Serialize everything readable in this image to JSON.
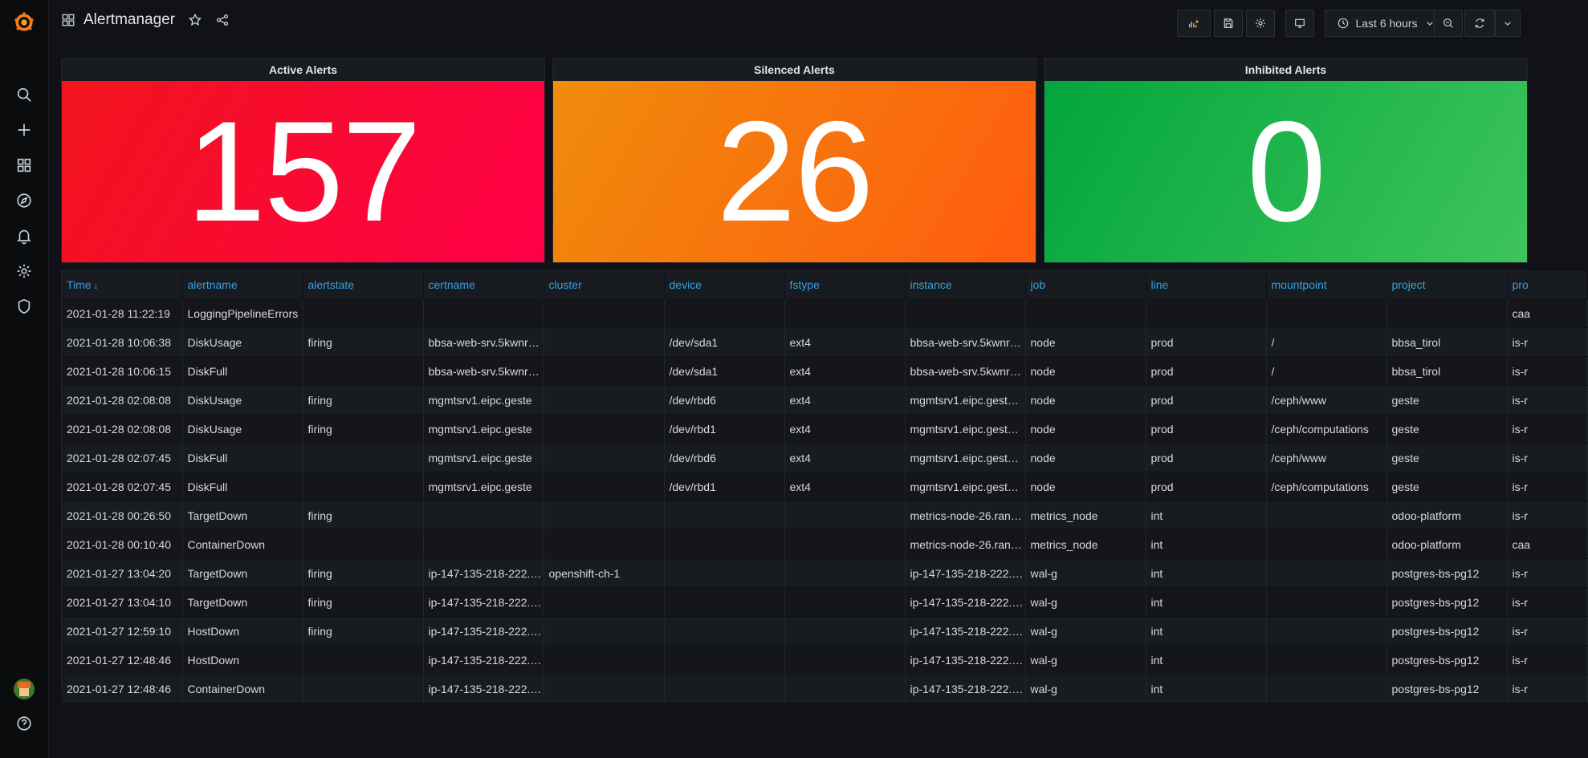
{
  "app": {
    "dashboard_title": "Alertmanager"
  },
  "sidebar": {
    "icons": [
      "grafana-logo-icon",
      "search-icon",
      "plus-icon",
      "dashboards-icon",
      "explore-icon",
      "alerting-bell-icon",
      "gear-icon",
      "shield-icon",
      "user-avatar",
      "help-icon"
    ]
  },
  "toolbar": {
    "time_range": "Last 6 hours",
    "buttons": [
      "add-panel-icon",
      "save-icon",
      "settings-icon",
      "tv-mode-icon",
      "clock-icon",
      "zoom-out-icon",
      "refresh-icon",
      "chevron-down-icon"
    ]
  },
  "stats": [
    {
      "title": "Active Alerts",
      "value": "157",
      "color_from": "#f2141c",
      "color_to": "#ff0048"
    },
    {
      "title": "Silenced Alerts",
      "value": "26",
      "color_from": "#f08c0c",
      "color_to": "#ff5b0f"
    },
    {
      "title": "Inhibited Alerts",
      "value": "0",
      "color_from": "#02a63c",
      "color_to": "#3ec45c"
    }
  ],
  "table": {
    "columns": [
      "Time",
      "alertname",
      "alertstate",
      "certname",
      "cluster",
      "device",
      "fstype",
      "instance",
      "job",
      "line",
      "mountpoint",
      "project",
      "pro"
    ],
    "rows": [
      [
        "2021-01-28 11:22:19",
        "LoggingPipelineErrors",
        "",
        "",
        "",
        "",
        "",
        "",
        "",
        "",
        "",
        "",
        "caa"
      ],
      [
        "2021-01-28 10:06:38",
        "DiskUsage",
        "firing",
        "bbsa-web-srv.5kwnr…",
        "",
        "/dev/sda1",
        "ext4",
        "bbsa-web-srv.5kwnr…",
        "node",
        "prod",
        "/",
        "bbsa_tirol",
        "is-r"
      ],
      [
        "2021-01-28 10:06:15",
        "DiskFull",
        "",
        "bbsa-web-srv.5kwnr…",
        "",
        "/dev/sda1",
        "ext4",
        "bbsa-web-srv.5kwnr…",
        "node",
        "prod",
        "/",
        "bbsa_tirol",
        "is-r"
      ],
      [
        "2021-01-28 02:08:08",
        "DiskUsage",
        "firing",
        "mgmtsrv1.eipc.geste",
        "",
        "/dev/rbd6",
        "ext4",
        "mgmtsrv1.eipc.gest…",
        "node",
        "prod",
        "/ceph/www",
        "geste",
        "is-r"
      ],
      [
        "2021-01-28 02:08:08",
        "DiskUsage",
        "firing",
        "mgmtsrv1.eipc.geste",
        "",
        "/dev/rbd1",
        "ext4",
        "mgmtsrv1.eipc.gest…",
        "node",
        "prod",
        "/ceph/computations",
        "geste",
        "is-r"
      ],
      [
        "2021-01-28 02:07:45",
        "DiskFull",
        "",
        "mgmtsrv1.eipc.geste",
        "",
        "/dev/rbd6",
        "ext4",
        "mgmtsrv1.eipc.gest…",
        "node",
        "prod",
        "/ceph/www",
        "geste",
        "is-r"
      ],
      [
        "2021-01-28 02:07:45",
        "DiskFull",
        "",
        "mgmtsrv1.eipc.geste",
        "",
        "/dev/rbd1",
        "ext4",
        "mgmtsrv1.eipc.gest…",
        "node",
        "prod",
        "/ceph/computations",
        "geste",
        "is-r"
      ],
      [
        "2021-01-28 00:26:50",
        "TargetDown",
        "firing",
        "",
        "",
        "",
        "",
        "metrics-node-26.ran…",
        "metrics_node",
        "int",
        "",
        "odoo-platform",
        "is-r"
      ],
      [
        "2021-01-28 00:10:40",
        "ContainerDown",
        "",
        "",
        "",
        "",
        "",
        "metrics-node-26.ran…",
        "metrics_node",
        "int",
        "",
        "odoo-platform",
        "caa"
      ],
      [
        "2021-01-27 13:04:20",
        "TargetDown",
        "firing",
        "ip-147-135-218-222.…",
        "openshift-ch-1",
        "",
        "",
        "ip-147-135-218-222.…",
        "wal-g",
        "int",
        "",
        "postgres-bs-pg12",
        "is-r"
      ],
      [
        "2021-01-27 13:04:10",
        "TargetDown",
        "firing",
        "ip-147-135-218-222.…",
        "",
        "",
        "",
        "ip-147-135-218-222.…",
        "wal-g",
        "int",
        "",
        "postgres-bs-pg12",
        "is-r"
      ],
      [
        "2021-01-27 12:59:10",
        "HostDown",
        "firing",
        "ip-147-135-218-222.…",
        "",
        "",
        "",
        "ip-147-135-218-222.…",
        "wal-g",
        "int",
        "",
        "postgres-bs-pg12",
        "is-r"
      ],
      [
        "2021-01-27 12:48:46",
        "HostDown",
        "",
        "ip-147-135-218-222.…",
        "",
        "",
        "",
        "ip-147-135-218-222.…",
        "wal-g",
        "int",
        "",
        "postgres-bs-pg12",
        "is-r"
      ],
      [
        "2021-01-27 12:48:46",
        "ContainerDown",
        "",
        "ip-147-135-218-222.…",
        "",
        "",
        "",
        "ip-147-135-218-222.…",
        "wal-g",
        "int",
        "",
        "postgres-bs-pg12",
        "is-r"
      ]
    ]
  }
}
